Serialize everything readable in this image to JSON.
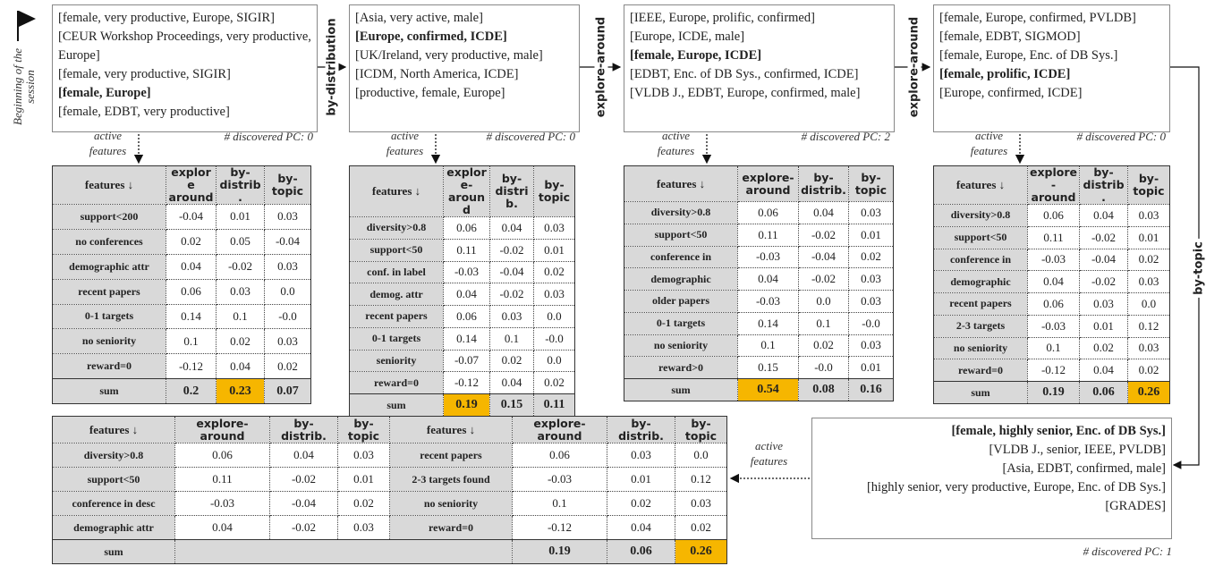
{
  "start_label": "Beginning of the session",
  "operations": [
    "by-distribution",
    "explore-around",
    "explore-around",
    "by-topic"
  ],
  "steps": [
    {
      "items": [
        {
          "text": "[female, very productive, Europe, SIGIR]"
        },
        {
          "text": "[CEUR Workshop Proceedings, very productive, Europe]"
        },
        {
          "text": "[female, very productive, SIGIR]"
        },
        {
          "text": "[female, Europe]",
          "bold": true
        },
        {
          "text": "[female, EDBT, very productive]"
        }
      ],
      "discovered": "# discovered PC: 0",
      "features_label": "active features",
      "table": {
        "headers": [
          "features ↓",
          "explore around",
          "by-distrib.",
          "by-topic"
        ],
        "rows": [
          [
            "support<200",
            "-0.04",
            "0.01",
            "0.03"
          ],
          [
            "no conferences",
            "0.02",
            "0.05",
            "-0.04"
          ],
          [
            "demographic attr",
            "0.04",
            "-0.02",
            "0.03"
          ],
          [
            "recent papers",
            "0.06",
            "0.03",
            "0.0"
          ],
          [
            "0-1 targets",
            "0.14",
            "0.1",
            "-0.0"
          ],
          [
            "no seniority",
            "0.1",
            "0.02",
            "0.03"
          ],
          [
            "reward=0",
            "-0.12",
            "0.04",
            "0.02"
          ]
        ],
        "sum": {
          "label": "sum",
          "values": [
            "0.2",
            "0.23",
            "0.07"
          ],
          "highlight": 1
        }
      }
    },
    {
      "items": [
        {
          "text": "[Asia, very active, male]"
        },
        {
          "text": "[Europe, confirmed, ICDE]",
          "bold": true
        },
        {
          "text": "[UK/Ireland, very productive, male]"
        },
        {
          "text": "[ICDM, North America, ICDE]"
        },
        {
          "text": "[productive, female, Europe]"
        }
      ],
      "discovered": "# discovered PC: 0",
      "features_label": "active features",
      "table": {
        "headers": [
          "features ↓",
          "explore-around",
          "by-distrib.",
          "by-topic"
        ],
        "rows": [
          [
            "diversity>0.8",
            "0.06",
            "0.04",
            "0.03"
          ],
          [
            "support<50",
            "0.11",
            "-0.02",
            "0.01"
          ],
          [
            "conf. in label",
            "-0.03",
            "-0.04",
            "0.02"
          ],
          [
            "demog. attr",
            "0.04",
            "-0.02",
            "0.03"
          ],
          [
            "recent papers",
            "0.06",
            "0.03",
            "0.0"
          ],
          [
            "0-1 targets",
            "0.14",
            "0.1",
            "-0.0"
          ],
          [
            "seniority",
            "-0.07",
            "0.02",
            "0.0"
          ],
          [
            "reward=0",
            "-0.12",
            "0.04",
            "0.02"
          ]
        ],
        "sum": {
          "label": "sum",
          "values": [
            "0.19",
            "0.15",
            "0.11"
          ],
          "highlight": 0
        }
      }
    },
    {
      "items": [
        {
          "text": "[IEEE, Europe, prolific, confirmed]"
        },
        {
          "text": "[Europe, ICDE, male]"
        },
        {
          "text": "[female, Europe, ICDE]",
          "bold": true
        },
        {
          "text": "[EDBT, Enc. of DB Sys., confirmed, ICDE]"
        },
        {
          "text": "[VLDB J., EDBT, Europe, confirmed, male]"
        }
      ],
      "discovered": "# discovered PC: 2",
      "features_label": "active features",
      "table": {
        "headers": [
          "features ↓",
          "explore-around",
          "by-distrib.",
          "by-topic"
        ],
        "rows": [
          [
            "diversity>0.8",
            "0.06",
            "0.04",
            "0.03"
          ],
          [
            "support<50",
            "0.11",
            "-0.02",
            "0.01"
          ],
          [
            "conference in",
            "-0.03",
            "-0.04",
            "0.02"
          ],
          [
            "demographic",
            "0.04",
            "-0.02",
            "0.03"
          ],
          [
            "older papers",
            "-0.03",
            "0.0",
            "0.03"
          ],
          [
            "0-1 targets",
            "0.14",
            "0.1",
            "-0.0"
          ],
          [
            "no seniority",
            "0.1",
            "0.02",
            "0.03"
          ],
          [
            "reward>0",
            "0.15",
            "-0.0",
            "0.01"
          ]
        ],
        "sum": {
          "label": "sum",
          "values": [
            "0.54",
            "0.08",
            "0.16"
          ],
          "highlight": 0
        }
      }
    },
    {
      "items": [
        {
          "text": "[female, Europe, confirmed, PVLDB]"
        },
        {
          "text": "[female, EDBT, SIGMOD]"
        },
        {
          "text": "[female, Europe, Enc. of DB Sys.]"
        },
        {
          "text": "[female, prolific, ICDE]",
          "bold": true
        },
        {
          "text": "[Europe, confirmed, ICDE]"
        }
      ],
      "discovered": "# discovered PC: 0",
      "features_label": "active features",
      "table": {
        "headers": [
          "features ↓",
          "explore-around",
          "by-distrib.",
          "by-topic"
        ],
        "rows": [
          [
            "diversity>0.8",
            "0.06",
            "0.04",
            "0.03"
          ],
          [
            "support<50",
            "0.11",
            "-0.02",
            "0.01"
          ],
          [
            "conference in",
            "-0.03",
            "-0.04",
            "0.02"
          ],
          [
            "demographic",
            "0.04",
            "-0.02",
            "0.03"
          ],
          [
            "recent papers",
            "0.06",
            "0.03",
            "0.0"
          ],
          [
            "2-3 targets",
            "-0.03",
            "0.01",
            "0.12"
          ],
          [
            "no seniority",
            "0.1",
            "0.02",
            "0.03"
          ],
          [
            "reward=0",
            "-0.12",
            "0.04",
            "0.02"
          ]
        ],
        "sum": {
          "label": "sum",
          "values": [
            "0.19",
            "0.06",
            "0.26"
          ],
          "highlight": 2
        }
      }
    }
  ],
  "final_step": {
    "items": [
      {
        "text": "[female, highly senior, Enc. of DB Sys.]",
        "bold": true
      },
      {
        "text": "[VLDB J., senior, IEEE, PVLDB]"
      },
      {
        "text": "[Asia, EDBT, confirmed, male]"
      },
      {
        "text": "[highly senior, very productive, Europe, Enc. of DB Sys.]"
      },
      {
        "text": "[GRADES]"
      }
    ],
    "discovered": "# discovered PC: 1",
    "features_label": "active features",
    "table": {
      "headers": [
        "features ↓",
        "explore-around",
        "by-distrib.",
        "by-topic",
        "features ↓",
        "explore-around",
        "by-distrib.",
        "by-topic"
      ],
      "rows": [
        [
          "diversity>0.8",
          "0.06",
          "0.04",
          "0.03",
          "recent papers",
          "0.06",
          "0.03",
          "0.0"
        ],
        [
          "support<50",
          "0.11",
          "-0.02",
          "0.01",
          "2-3 targets found",
          "-0.03",
          "0.01",
          "0.12"
        ],
        [
          "conference in desc",
          "-0.03",
          "-0.04",
          "0.02",
          "no seniority",
          "0.1",
          "0.02",
          "0.03"
        ],
        [
          "demographic attr",
          "0.04",
          "-0.02",
          "0.03",
          "reward=0",
          "-0.12",
          "0.04",
          "0.02"
        ]
      ],
      "sum": {
        "label": "sum",
        "values": [
          "0.19",
          "0.06",
          "0.26"
        ],
        "highlight": 2
      }
    }
  }
}
